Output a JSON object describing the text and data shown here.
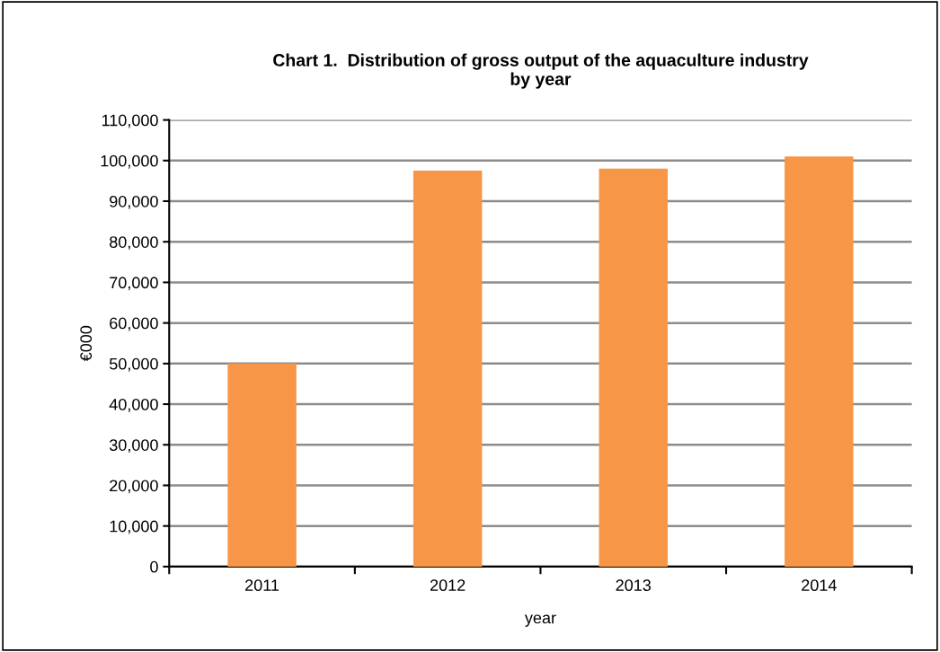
{
  "chart_data": {
    "type": "bar",
    "title": "Chart 1.  Distribution of gross output of the aquaculture industry\nby year",
    "xlabel": "year",
    "ylabel": "€000",
    "categories": [
      "2011",
      "2012",
      "2013",
      "2014"
    ],
    "values": [
      50000,
      97500,
      98000,
      101000
    ],
    "color": "#f79646",
    "ylim": [
      0,
      110000
    ],
    "yticks": [
      {
        "value": 0,
        "label": "0"
      },
      {
        "value": 10000,
        "label": "10,000"
      },
      {
        "value": 20000,
        "label": "20,000"
      },
      {
        "value": 30000,
        "label": "30,000"
      },
      {
        "value": 40000,
        "label": "40,000"
      },
      {
        "value": 50000,
        "label": "50,000"
      },
      {
        "value": 60000,
        "label": "60,000"
      },
      {
        "value": 70000,
        "label": "70,000"
      },
      {
        "value": 80000,
        "label": "80,000"
      },
      {
        "value": 90000,
        "label": "90,000"
      },
      {
        "value": 100000,
        "label": "100,000"
      },
      {
        "value": 110000,
        "label": "110,000"
      }
    ],
    "grid": "y",
    "legend": false
  }
}
